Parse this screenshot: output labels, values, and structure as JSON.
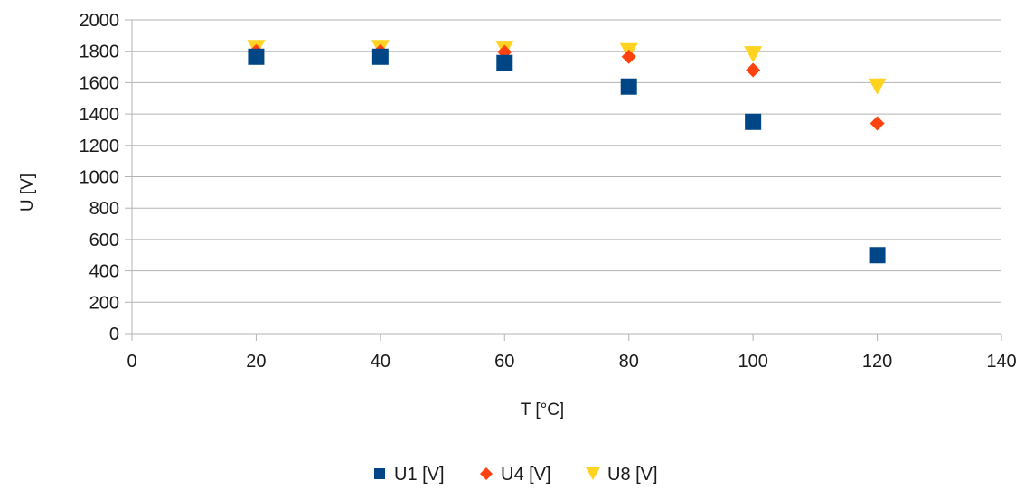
{
  "chart_data": {
    "type": "scatter",
    "title": "",
    "xlabel": "T [°C]",
    "ylabel": "U [V]",
    "xlim": [
      0,
      140
    ],
    "ylim": [
      0,
      2000
    ],
    "xticks": [
      0,
      20,
      40,
      60,
      80,
      100,
      120,
      140
    ],
    "yticks": [
      0,
      200,
      400,
      600,
      800,
      1000,
      1200,
      1400,
      1600,
      1800,
      2000
    ],
    "grid": "horizontal",
    "legend_position": "bottom",
    "series": [
      {
        "name": "U1 [V]",
        "marker": "square",
        "color": "#004586",
        "x": [
          20,
          40,
          60,
          80,
          100,
          120
        ],
        "y": [
          1765,
          1765,
          1725,
          1575,
          1350,
          500
        ]
      },
      {
        "name": "U4 [V]",
        "marker": "diamond",
        "color": "#ff420e",
        "x": [
          20,
          40,
          60,
          80,
          100,
          120
        ],
        "y": [
          1800,
          1800,
          1795,
          1765,
          1680,
          1340
        ]
      },
      {
        "name": "U8 [V]",
        "marker": "triangle-down",
        "color": "#ffd320",
        "x": [
          20,
          40,
          60,
          80,
          100,
          120
        ],
        "y": [
          1820,
          1820,
          1815,
          1800,
          1780,
          1575
        ]
      }
    ]
  }
}
